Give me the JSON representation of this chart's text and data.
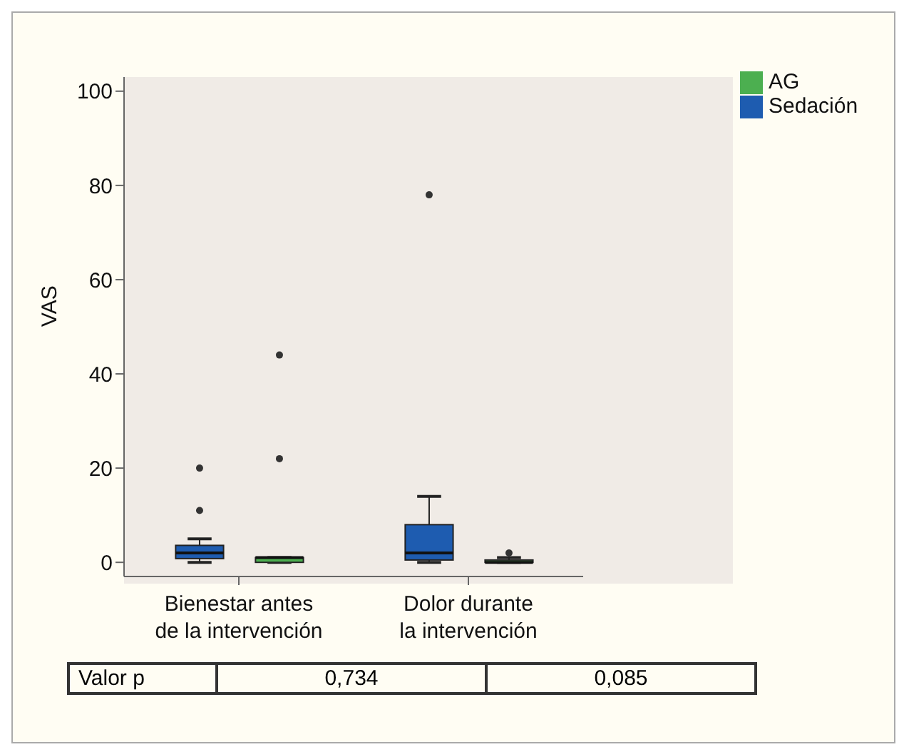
{
  "chart_data": {
    "type": "box",
    "ylabel": "VAS",
    "categories": [
      "Bienestar antes\nde la intervención",
      "Dolor durante\nla intervención"
    ],
    "ylim": [
      -3,
      103
    ],
    "yticks": [
      0,
      20,
      40,
      60,
      80,
      100
    ],
    "legend": "top right",
    "series": [
      {
        "name": "Sedación",
        "color": "#1e5cb0",
        "boxes": [
          {
            "low": 0,
            "q1": 0.8,
            "median": 2,
            "q3": 3.6,
            "high": 5,
            "outliers": [
              11,
              20
            ]
          },
          {
            "low": 0,
            "q1": 0.5,
            "median": 2,
            "q3": 8,
            "high": 14,
            "outliers": [
              78
            ]
          }
        ]
      },
      {
        "name": "AG",
        "color": "#4caf50",
        "boxes": [
          {
            "low": 0,
            "q1": 0,
            "median": 1,
            "q3": 1,
            "high": 1,
            "outliers": [
              22,
              44
            ]
          },
          {
            "low": 0,
            "q1": 0,
            "median": 0,
            "q3": 0.5,
            "high": 1,
            "outliers": [
              2
            ]
          }
        ]
      }
    ],
    "annotations": [
      "Valor p",
      "0,734",
      "0,085"
    ]
  }
}
